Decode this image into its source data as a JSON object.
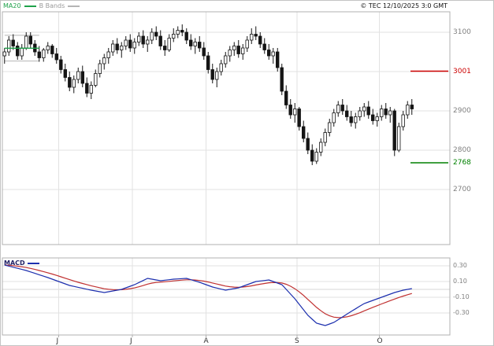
{
  "header": {
    "legend_ma20": "MA20",
    "legend_bbands": "B Bands",
    "copyright": "© TEC 12/10/2025 3:0 GMT"
  },
  "colors": {
    "ma20": "#1fa24a",
    "bbands": "#b5b5b5",
    "candle": "#151515",
    "grid": "#e2e2e2",
    "panel_border": "#b0b0b0",
    "macd_line": "#1c2fae",
    "macd_signal": "#c03030",
    "macd_text": "#222266",
    "resistance": "#cc0000",
    "support": "#008000",
    "axis_text": "#808080",
    "legend_bbands_text": "#9a9a9a"
  },
  "chart_data": [
    {
      "type": "candlestick",
      "title": "",
      "price_axis": {
        "ticks": [
          {
            "label": "3100",
            "value": 3100
          },
          {
            "label": "2900",
            "value": 2900
          },
          {
            "label": "2800",
            "value": 2800
          },
          {
            "label": "2700",
            "value": 2700
          }
        ],
        "gridlines": [
          3100,
          3000,
          2900,
          2800,
          2700
        ]
      },
      "levels": [
        {
          "label": "3001",
          "value": 3001,
          "role": "resistance"
        },
        {
          "label": "2768",
          "value": 2768,
          "role": "support"
        }
      ],
      "months": [
        {
          "label": "J",
          "index": 13
        },
        {
          "label": "J",
          "index": 30
        },
        {
          "label": "A",
          "index": 47
        },
        {
          "label": "S",
          "index": 68
        },
        {
          "label": "O",
          "index": 87
        }
      ],
      "overlays": {
        "ma_period": 20,
        "bollinger_period": 20,
        "bollinger_mult": 2
      },
      "ohlc": [
        [
          3040,
          3060,
          3020,
          3050
        ],
        [
          3050,
          3090,
          3040,
          3080
        ],
        [
          3080,
          3095,
          3055,
          3065
        ],
        [
          3065,
          3075,
          3030,
          3040
        ],
        [
          3040,
          3070,
          3030,
          3060
        ],
        [
          3060,
          3100,
          3055,
          3090
        ],
        [
          3090,
          3100,
          3060,
          3070
        ],
        [
          3070,
          3080,
          3040,
          3050
        ],
        [
          3050,
          3065,
          3025,
          3035
        ],
        [
          3035,
          3060,
          3025,
          3055
        ],
        [
          3055,
          3075,
          3045,
          3065
        ],
        [
          3065,
          3070,
          3035,
          3045
        ],
        [
          3045,
          3060,
          3020,
          3030
        ],
        [
          3030,
          3040,
          2995,
          3005
        ],
        [
          3005,
          3020,
          2975,
          2985
        ],
        [
          2985,
          3000,
          2950,
          2960
        ],
        [
          2960,
          2990,
          2945,
          2980
        ],
        [
          2980,
          3010,
          2970,
          3000
        ],
        [
          3000,
          3015,
          2960,
          2970
        ],
        [
          2970,
          2985,
          2935,
          2945
        ],
        [
          2945,
          2975,
          2930,
          2965
        ],
        [
          2965,
          3005,
          2960,
          2995
        ],
        [
          2995,
          3030,
          2985,
          3020
        ],
        [
          3020,
          3045,
          3005,
          3035
        ],
        [
          3035,
          3060,
          3020,
          3050
        ],
        [
          3050,
          3080,
          3040,
          3070
        ],
        [
          3070,
          3085,
          3045,
          3055
        ],
        [
          3055,
          3075,
          3035,
          3065
        ],
        [
          3065,
          3090,
          3055,
          3080
        ],
        [
          3080,
          3095,
          3050,
          3060
        ],
        [
          3060,
          3085,
          3045,
          3075
        ],
        [
          3075,
          3100,
          3065,
          3090
        ],
        [
          3090,
          3105,
          3060,
          3070
        ],
        [
          3070,
          3090,
          3050,
          3080
        ],
        [
          3080,
          3110,
          3070,
          3100
        ],
        [
          3100,
          3115,
          3080,
          3090
        ],
        [
          3090,
          3105,
          3055,
          3065
        ],
        [
          3065,
          3080,
          3040,
          3055
        ],
        [
          3055,
          3095,
          3050,
          3085
        ],
        [
          3085,
          3110,
          3075,
          3095
        ],
        [
          3095,
          3115,
          3085,
          3105
        ],
        [
          3105,
          3120,
          3090,
          3100
        ],
        [
          3100,
          3110,
          3070,
          3080
        ],
        [
          3080,
          3095,
          3055,
          3065
        ],
        [
          3065,
          3085,
          3045,
          3075
        ],
        [
          3075,
          3090,
          3050,
          3060
        ],
        [
          3060,
          3075,
          3030,
          3040
        ],
        [
          3040,
          3050,
          2995,
          3005
        ],
        [
          3005,
          3020,
          2970,
          2980
        ],
        [
          2980,
          3010,
          2960,
          3000
        ],
        [
          3000,
          3030,
          2990,
          3020
        ],
        [
          3020,
          3050,
          3010,
          3040
        ],
        [
          3040,
          3065,
          3025,
          3055
        ],
        [
          3055,
          3075,
          3040,
          3065
        ],
        [
          3065,
          3080,
          3035,
          3045
        ],
        [
          3045,
          3070,
          3030,
          3060
        ],
        [
          3060,
          3090,
          3050,
          3080
        ],
        [
          3080,
          3110,
          3070,
          3095
        ],
        [
          3095,
          3115,
          3080,
          3090
        ],
        [
          3090,
          3100,
          3060,
          3070
        ],
        [
          3070,
          3085,
          3045,
          3055
        ],
        [
          3055,
          3070,
          3030,
          3040
        ],
        [
          3040,
          3060,
          3020,
          3050
        ],
        [
          3050,
          3060,
          3000,
          3010
        ],
        [
          3010,
          3020,
          2940,
          2950
        ],
        [
          2950,
          2965,
          2905,
          2915
        ],
        [
          2915,
          2930,
          2880,
          2890
        ],
        [
          2890,
          2920,
          2870,
          2905
        ],
        [
          2905,
          2910,
          2850,
          2860
        ],
        [
          2860,
          2875,
          2820,
          2830
        ],
        [
          2830,
          2845,
          2790,
          2800
        ],
        [
          2800,
          2815,
          2762,
          2772
        ],
        [
          2772,
          2805,
          2765,
          2795
        ],
        [
          2795,
          2830,
          2785,
          2820
        ],
        [
          2820,
          2855,
          2810,
          2845
        ],
        [
          2845,
          2880,
          2835,
          2870
        ],
        [
          2870,
          2905,
          2860,
          2895
        ],
        [
          2895,
          2925,
          2885,
          2915
        ],
        [
          2915,
          2930,
          2890,
          2900
        ],
        [
          2900,
          2915,
          2875,
          2885
        ],
        [
          2885,
          2900,
          2860,
          2870
        ],
        [
          2870,
          2895,
          2855,
          2885
        ],
        [
          2885,
          2910,
          2875,
          2900
        ],
        [
          2900,
          2920,
          2885,
          2910
        ],
        [
          2910,
          2925,
          2880,
          2890
        ],
        [
          2890,
          2905,
          2865,
          2875
        ],
        [
          2875,
          2895,
          2860,
          2885
        ],
        [
          2885,
          2915,
          2875,
          2905
        ],
        [
          2905,
          2920,
          2880,
          2890
        ],
        [
          2890,
          2910,
          2870,
          2900
        ],
        [
          2900,
          2905,
          2785,
          2800
        ],
        [
          2800,
          2870,
          2795,
          2860
        ],
        [
          2860,
          2900,
          2850,
          2890
        ],
        [
          2890,
          2925,
          2880,
          2915
        ],
        [
          2915,
          2930,
          2890,
          2905
        ]
      ]
    },
    {
      "type": "line",
      "label": "MACD",
      "params": {
        "fast": 12,
        "slow": 26,
        "signal": 9
      },
      "ticks": [
        {
          "label": "0.30",
          "value": 0.3
        },
        {
          "label": "0.10",
          "value": 0.1
        },
        {
          "label": "-0.10",
          "value": -0.1
        },
        {
          "label": "-0.30",
          "value": -0.3
        }
      ],
      "series": [
        {
          "name": "MACD",
          "points": [
            [
              0,
              0.31
            ],
            [
              5,
              0.24
            ],
            [
              10,
              0.15
            ],
            [
              15,
              0.05
            ],
            [
              20,
              -0.01
            ],
            [
              23,
              -0.04
            ],
            [
              27,
              0.0
            ],
            [
              30,
              0.06
            ],
            [
              33,
              0.14
            ],
            [
              36,
              0.11
            ],
            [
              39,
              0.13
            ],
            [
              42,
              0.14
            ],
            [
              45,
              0.09
            ],
            [
              48,
              0.03
            ],
            [
              51,
              -0.01
            ],
            [
              54,
              0.02
            ],
            [
              58,
              0.1
            ],
            [
              61,
              0.12
            ],
            [
              64,
              0.06
            ],
            [
              67,
              -0.12
            ],
            [
              70,
              -0.33
            ],
            [
              72,
              -0.43
            ],
            [
              74,
              -0.46
            ],
            [
              76,
              -0.42
            ],
            [
              80,
              -0.28
            ],
            [
              83,
              -0.18
            ],
            [
              87,
              -0.1
            ],
            [
              90,
              -0.04
            ],
            [
              92,
              -0.01
            ],
            [
              94,
              0.01
            ]
          ]
        },
        {
          "name": "Signal",
          "derived": "ema9-of-MACD"
        }
      ]
    }
  ]
}
